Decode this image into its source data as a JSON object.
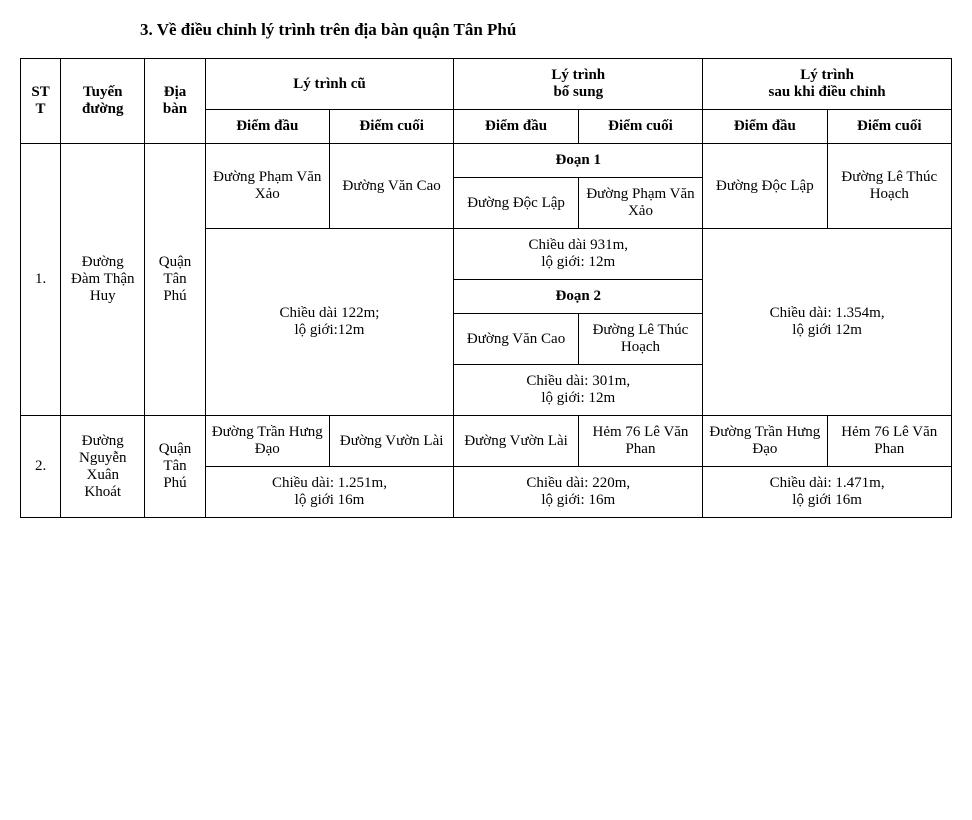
{
  "title": "3.  Về điều chỉnh lý trình trên địa bàn quận Tân Phú",
  "headers": {
    "stt": "STT",
    "route": "Tuyến\nđường",
    "area": "Địa\nbàn",
    "old": "Lý trình cũ",
    "add": "Lý trình\nbổ sung",
    "after": "Lý trình\nsau khi điều chỉnh",
    "start": "Điểm đầu",
    "end": "Điểm cuối"
  },
  "labels": {
    "seg1": "Đoạn 1",
    "seg2": "Đoạn 2"
  },
  "row1": {
    "stt": "1.",
    "route": "Đường Đàm Thận Huy",
    "area": "Quận Tân Phú",
    "old_start": "Đường Phạm Văn Xảo",
    "old_end": "Đường Văn Cao",
    "old_dim": "Chiều dài 122m;\nlộ giới:12m",
    "seg1_start": "Đường Độc Lập",
    "seg1_end": "Đường Phạm Văn Xảo",
    "seg1_dim": "Chiều dài 931m,\nlộ giới: 12m",
    "seg2_start": "Đường Văn Cao",
    "seg2_end": "Đường Lê Thúc Hoạch",
    "seg2_dim": "Chiều dài: 301m,\nlộ giới: 12m",
    "after_start": "Đường Độc Lập",
    "after_end": "Đường Lê Thúc Hoạch",
    "after_dim": "Chiều dài: 1.354m,\nlộ giới 12m"
  },
  "row2": {
    "stt": "2.",
    "route": "Đường Nguyễn Xuân Khoát",
    "area": "Quận Tân Phú",
    "old_start": "Đường Trần Hưng Đạo",
    "old_end": "Đường Vườn Lài",
    "old_dim": "Chiều dài: 1.251m,\nlộ giới 16m",
    "add_start": "Đường Vườn Lài",
    "add_end": "Hẻm 76 Lê Văn Phan",
    "add_dim": "Chiều dài: 220m,\nlộ giới: 16m",
    "after_start": "Đường Trần Hưng Đạo",
    "after_end": "Hẻm 76 Lê Văn Phan",
    "after_dim": "Chiều dài: 1.471m,\nlộ giới 16m"
  }
}
